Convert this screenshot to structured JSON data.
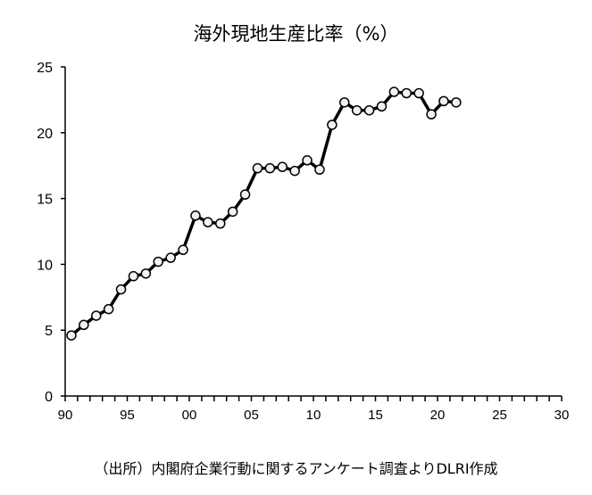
{
  "chart_data": {
    "type": "line",
    "title": "海外現地生産比率（%）",
    "source_note": "（出所）内閣府企業行動に関するアンケート調査よりDLRI作成",
    "xlabel": "",
    "ylabel": "",
    "x": [
      1990,
      1991,
      1992,
      1993,
      1994,
      1995,
      1996,
      1997,
      1998,
      1999,
      2000,
      2001,
      2002,
      2003,
      2004,
      2005,
      2006,
      2007,
      2008,
      2009,
      2010,
      2011,
      2012,
      2013,
      2014,
      2015,
      2016,
      2017,
      2018,
      2019,
      2020,
      2021
    ],
    "series": [
      {
        "values": [
          4.6,
          5.4,
          6.1,
          6.6,
          8.1,
          9.1,
          9.3,
          10.2,
          10.5,
          11.1,
          13.7,
          13.2,
          13.1,
          14.0,
          15.3,
          17.3,
          17.3,
          17.4,
          17.1,
          17.9,
          17.2,
          20.6,
          22.3,
          21.7,
          21.7,
          22.0,
          23.1,
          23.0,
          23.0,
          21.4,
          22.4,
          22.3
        ]
      }
    ],
    "xlim": [
      1990,
      2030
    ],
    "ylim": [
      0,
      25
    ],
    "x_tick_labels": [
      "90",
      "95",
      "00",
      "05",
      "10",
      "15",
      "20",
      "25",
      "30"
    ],
    "y_tick_labels": [
      "0",
      "5",
      "10",
      "15",
      "20",
      "25"
    ],
    "grid": false,
    "line_color": "#000000",
    "marker_fill": "#f2f2f2"
  }
}
